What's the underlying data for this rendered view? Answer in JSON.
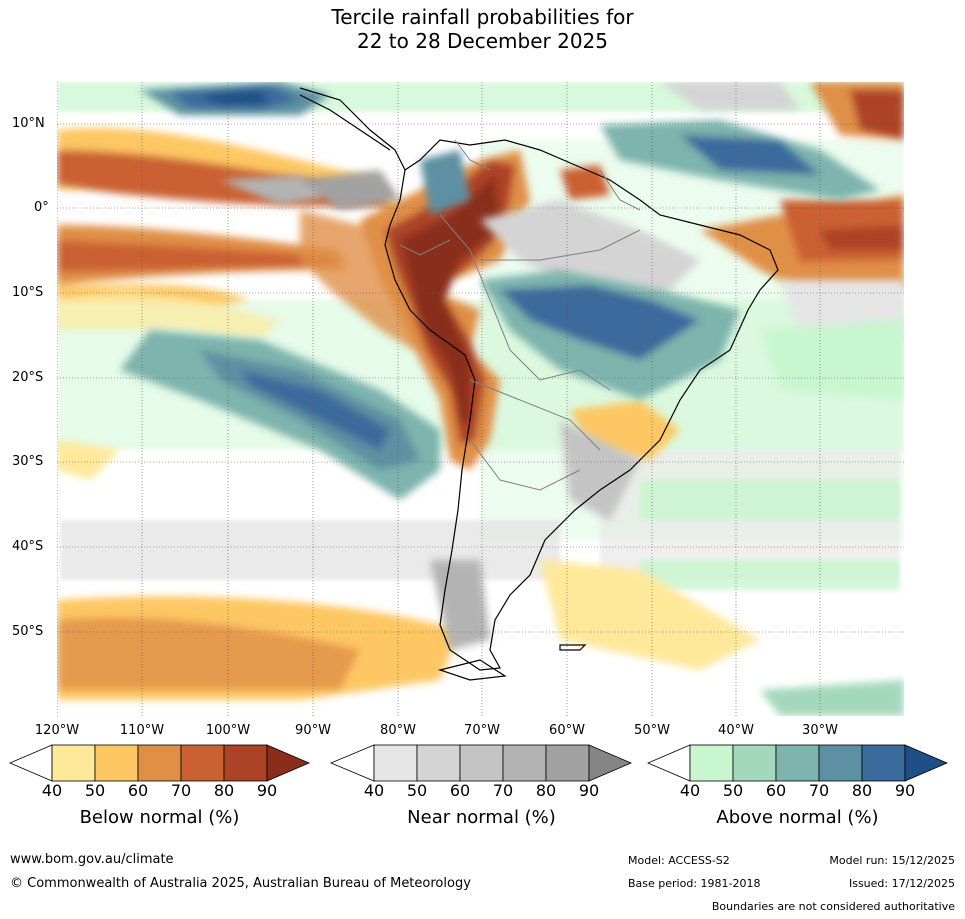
{
  "title": {
    "line1": "Tercile rainfall probabilities for",
    "line2": "22 to 28 December 2025"
  },
  "map": {
    "lon_labels": [
      "120°W",
      "110°W",
      "100°W",
      "90°W",
      "80°W",
      "70°W",
      "60°W",
      "50°W",
      "40°W",
      "30°W"
    ],
    "lat_labels": [
      "10°N",
      "0°",
      "10°S",
      "20°S",
      "30°S",
      "40°S",
      "50°S"
    ]
  },
  "colorbars": [
    {
      "name": "below",
      "title": "Below normal (%)",
      "ticks": [
        "40",
        "50",
        "60",
        "70",
        "80",
        "90"
      ],
      "colors": [
        "#fee89a",
        "#fdc764",
        "#e08f47",
        "#cb6033",
        "#ad4326",
        "#8a2d1b"
      ]
    },
    {
      "name": "near",
      "title": "Near normal (%)",
      "ticks": [
        "40",
        "50",
        "60",
        "70",
        "80",
        "90"
      ],
      "colors": [
        "#e5e5e5",
        "#d4d4d4",
        "#c4c4c4",
        "#b3b3b3",
        "#a2a2a2",
        "#858585"
      ]
    },
    {
      "name": "above",
      "title": "Above normal (%)",
      "ticks": [
        "40",
        "50",
        "60",
        "70",
        "80",
        "90"
      ],
      "colors": [
        "#c8f6cf",
        "#a4d8bc",
        "#7db4ad",
        "#5d90a2",
        "#3b6a9d",
        "#1d4f86"
      ]
    }
  ],
  "footer": {
    "website": "www.bom.gov.au/climate",
    "copyright": "© Commonwealth of Australia 2025, Australian Bureau of Meteorology",
    "model": "Model: ACCESS-S2",
    "base_period": "Base period: 1981-2018",
    "model_run": "Model run: 15/12/2025",
    "issued": "Issued: 17/12/2025",
    "disclaimer": "Boundaries are not considered authoritative"
  }
}
